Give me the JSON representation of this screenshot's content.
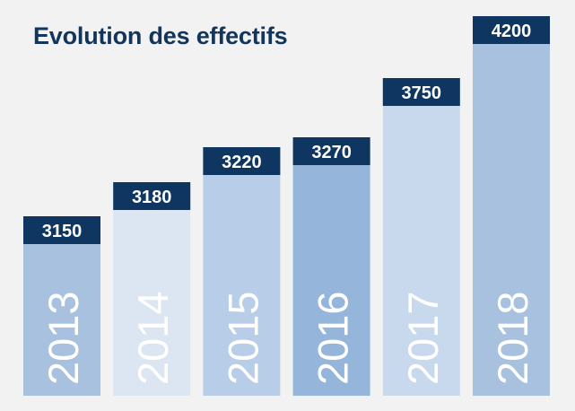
{
  "chart_data": {
    "type": "bar",
    "title": "Evolution des effectifs",
    "xlabel": "",
    "ylabel": "",
    "categories": [
      "2013",
      "2014",
      "2015",
      "2016",
      "2017",
      "2018"
    ],
    "values": [
      3150,
      3180,
      3220,
      3270,
      3750,
      4200
    ],
    "value_labels": [
      "3150",
      "3180",
      "3220",
      "3270",
      "3750",
      "4200"
    ],
    "bar_colors": [
      "#a7c1df",
      "#dce6f2",
      "#b8cde7",
      "#95b6da",
      "#c8d9ee",
      "#a7c1df"
    ],
    "label_box_color": "#0e3661",
    "grid": false,
    "legend": "none"
  }
}
